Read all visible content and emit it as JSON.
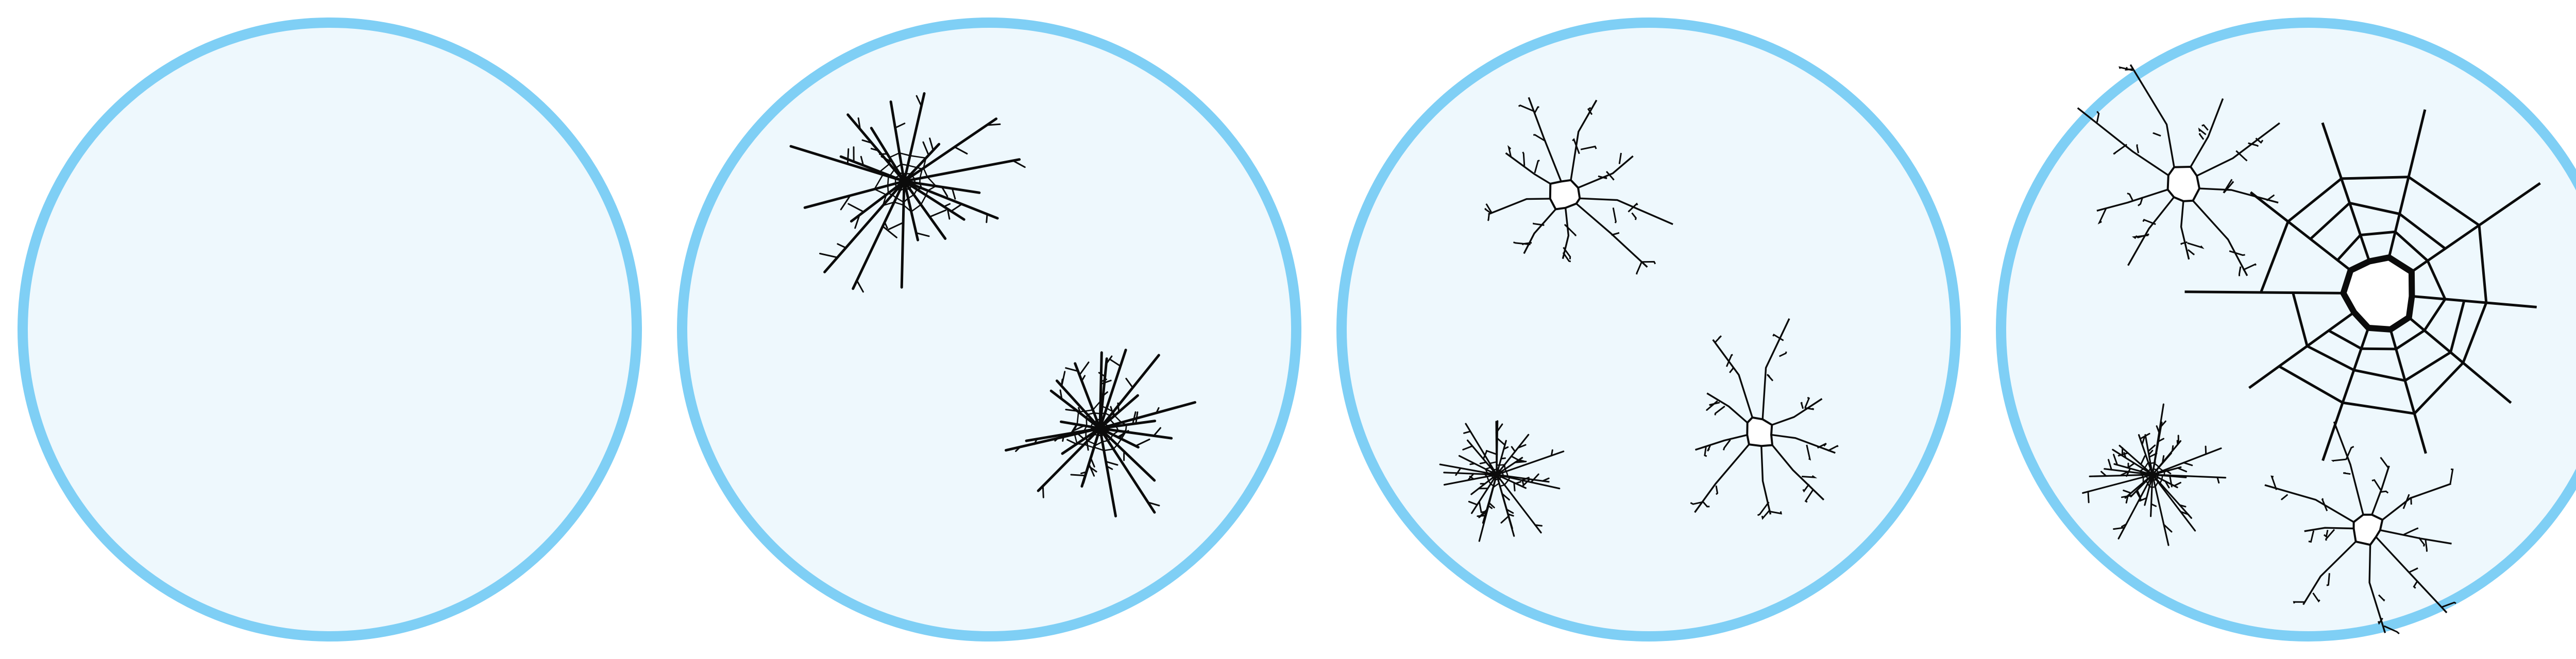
{
  "colors": {
    "background": "#ffffff",
    "ring": "#7fcff5",
    "fill": "#eef8fd",
    "crack": "#0b0b0b"
  },
  "panels": [
    {
      "name": "glass-panel-intact",
      "cracks": []
    },
    {
      "name": "glass-panel-two-impacts",
      "cracks": [
        {
          "kind": "star",
          "size": "large",
          "seed": 3
        },
        {
          "kind": "star",
          "size": "large",
          "seed": 7
        }
      ]
    },
    {
      "name": "glass-panel-three-impacts",
      "cracks": [
        {
          "kind": "hole",
          "size": "large",
          "seed": 11
        },
        {
          "kind": "star",
          "size": "small",
          "seed": 13
        },
        {
          "kind": "hole",
          "size": "large",
          "seed": 17
        }
      ]
    },
    {
      "name": "glass-panel-shattered",
      "cracks": [
        {
          "kind": "hole",
          "size": "large",
          "seed": 19
        },
        {
          "kind": "big-hole",
          "size": "huge",
          "seed": 23
        },
        {
          "kind": "star",
          "size": "small",
          "seed": 29
        },
        {
          "kind": "hole",
          "size": "large",
          "seed": 31
        }
      ]
    }
  ]
}
